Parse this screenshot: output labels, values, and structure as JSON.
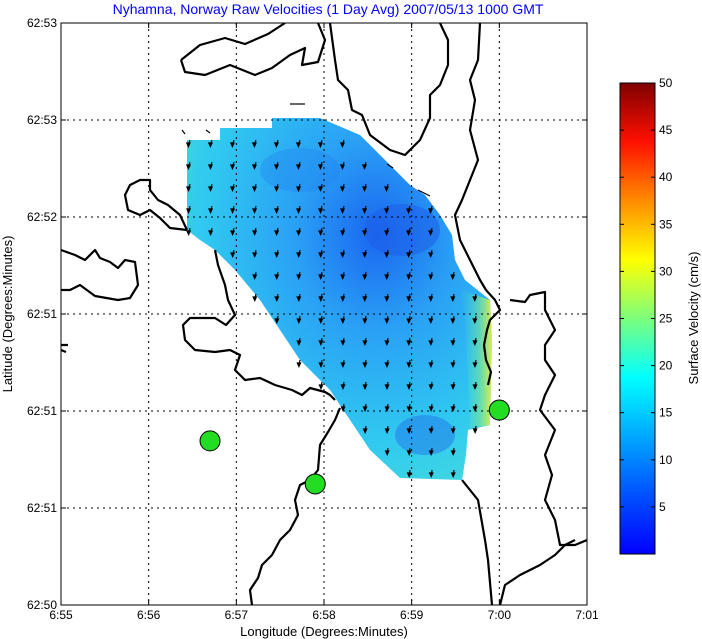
{
  "title": "Nyhamna, Norway Raw Velocities (1 Day Avg) 2007/05/13 1000 GMT",
  "xlabel": "Longitude (Degrees:Minutes)",
  "ylabel": "Latitude (Degrees:Minutes)",
  "x_ticks": [
    "6:55",
    "6:56",
    "6:57",
    "6:58",
    "6:59",
    "7:00",
    "7:01"
  ],
  "y_ticks": [
    "62:53",
    "62:53",
    "62:52",
    "62:51",
    "62:51",
    "62:51",
    "62:50"
  ],
  "colorbar": {
    "label": "Surface Velocity (cm/s)",
    "ticks": [
      "5",
      "10",
      "15",
      "20",
      "25",
      "30",
      "35",
      "40",
      "45",
      "50"
    ],
    "range": [
      0,
      50
    ],
    "colormap": "jet"
  },
  "colors": {
    "title": "#0000ff",
    "coastline": "#000000",
    "station_marker": "#22dd22",
    "field_low": "#1a6bff",
    "field_high": "#f0f020"
  },
  "stations": [
    {
      "name": "station-west",
      "lon_min": 56.7,
      "lat_min_frac": 0.282
    },
    {
      "name": "station-south",
      "lon_min": 57.9,
      "lat_min_frac": 0.208
    },
    {
      "name": "station-east",
      "lon_min": 60.0,
      "lat_min_frac": 0.335
    }
  ],
  "grid": true
}
